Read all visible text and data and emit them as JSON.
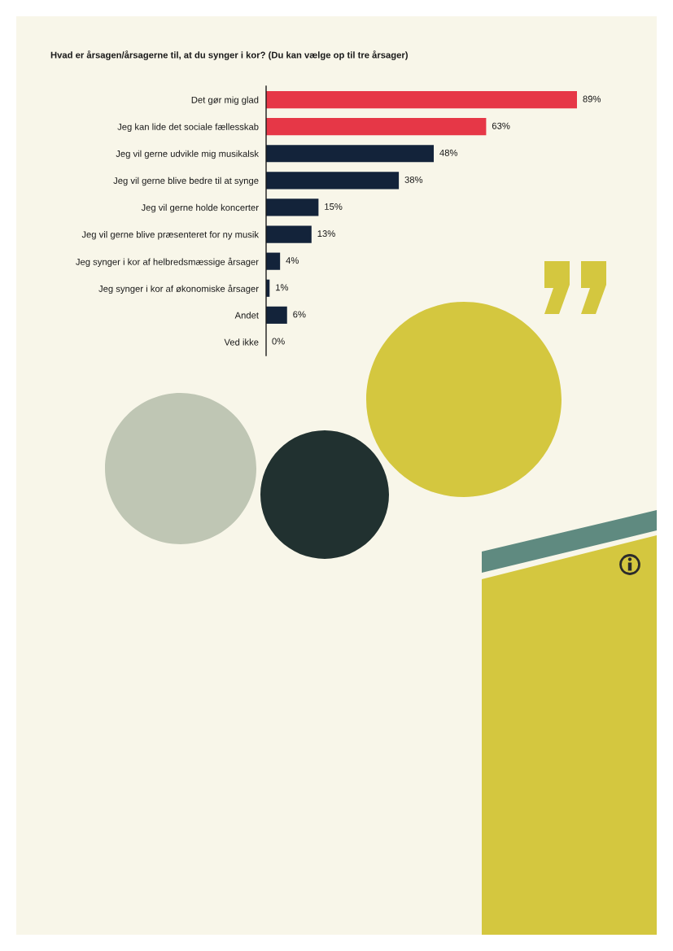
{
  "chart_data": {
    "type": "bar",
    "orientation": "horizontal",
    "title": "Hvad er årsagen/årsagerne til, at du synger i kor? (Du kan vælge op til tre årsager)",
    "categories": [
      "Det gør mig glad",
      "Jeg kan lide det sociale fællesskab",
      "Jeg vil gerne udvikle mig musikalsk",
      "Jeg vil gerne blive bedre til at synge",
      "Jeg vil gerne holde koncerter",
      "Jeg vil gerne blive præsenteret for ny musik",
      "Jeg synger i kor af helbredsmæssige årsager",
      "Jeg synger i kor af økonomiske årsager",
      "Andet",
      "Ved ikke"
    ],
    "values": [
      89,
      63,
      48,
      38,
      15,
      13,
      4,
      1,
      6,
      0
    ],
    "value_labels": [
      "89%",
      "63%",
      "48%",
      "38%",
      "15%",
      "13%",
      "4%",
      "1%",
      "6%",
      "0%"
    ],
    "colors": [
      "#e63747",
      "#e63747",
      "#13233a",
      "#13233a",
      "#13233a",
      "#13233a",
      "#13233a",
      "#13233a",
      "#13233a",
      "#13233a"
    ],
    "tick_labels": "y"
  }
}
